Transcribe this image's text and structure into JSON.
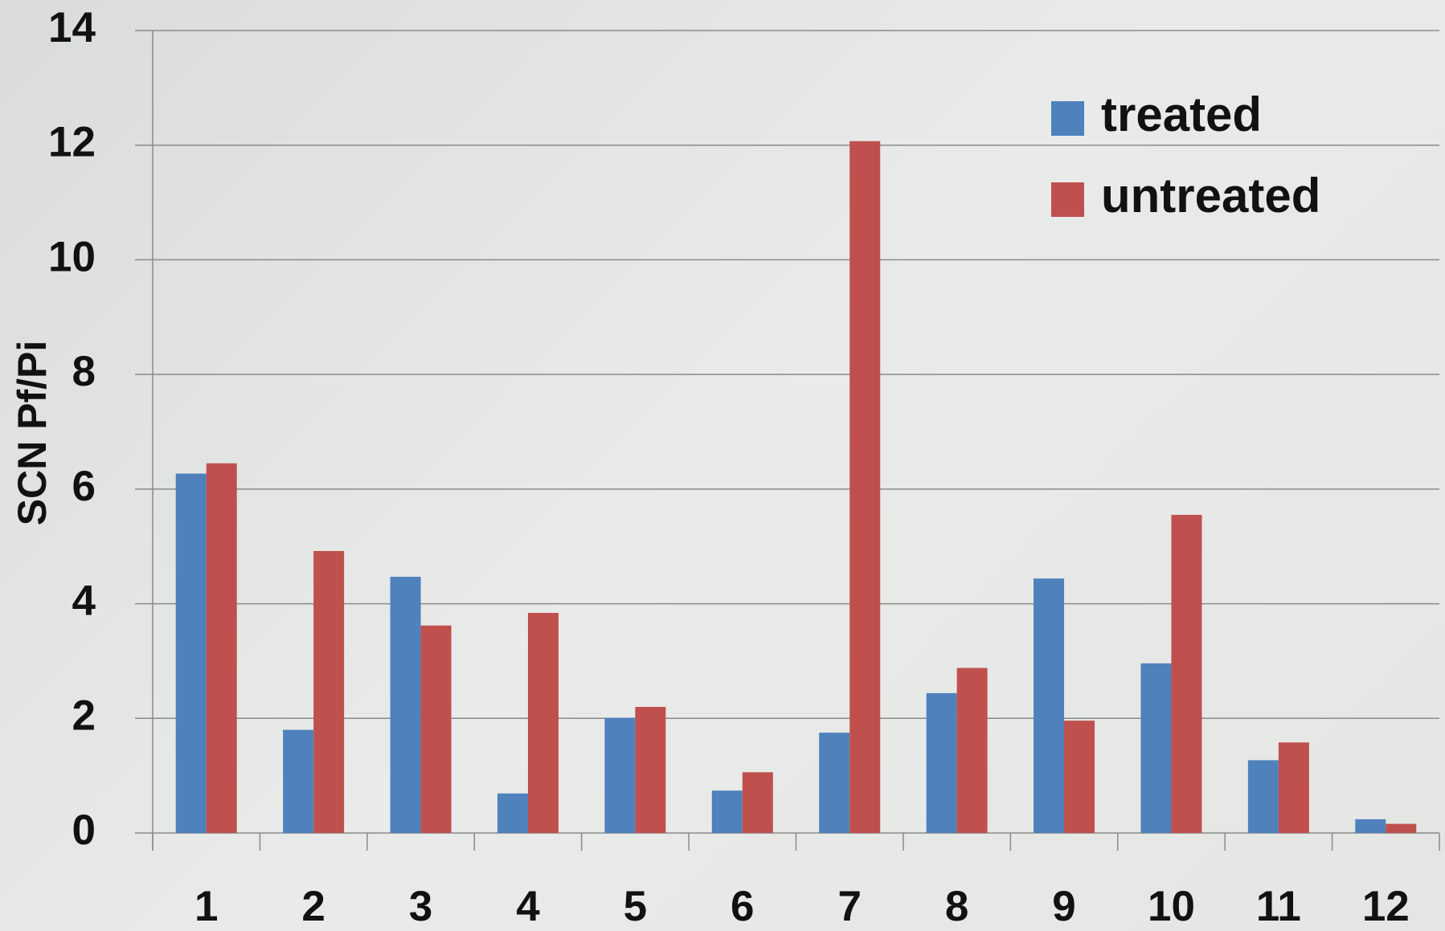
{
  "chart_data": {
    "type": "bar",
    "y_label": "SCN Pf/Pi",
    "categories": [
      "1",
      "2",
      "3",
      "4",
      "5",
      "6",
      "7",
      "8",
      "9",
      "10",
      "11",
      "12"
    ],
    "series": [
      {
        "name": "treated",
        "color": "#4f81bd",
        "values": [
          6.27,
          1.8,
          4.47,
          0.69,
          2.01,
          0.74,
          1.75,
          2.44,
          4.44,
          2.96,
          1.27,
          0.24
        ]
      },
      {
        "name": "untreated",
        "color": "#c0504d",
        "values": [
          6.45,
          4.92,
          3.62,
          3.84,
          2.2,
          1.06,
          12.07,
          2.88,
          1.96,
          5.55,
          1.58,
          0.16
        ]
      }
    ],
    "ylim": [
      0,
      14
    ],
    "yticks": [
      0,
      2,
      4,
      6,
      8,
      10,
      12,
      14
    ],
    "grid": true,
    "legend": "top-right"
  }
}
